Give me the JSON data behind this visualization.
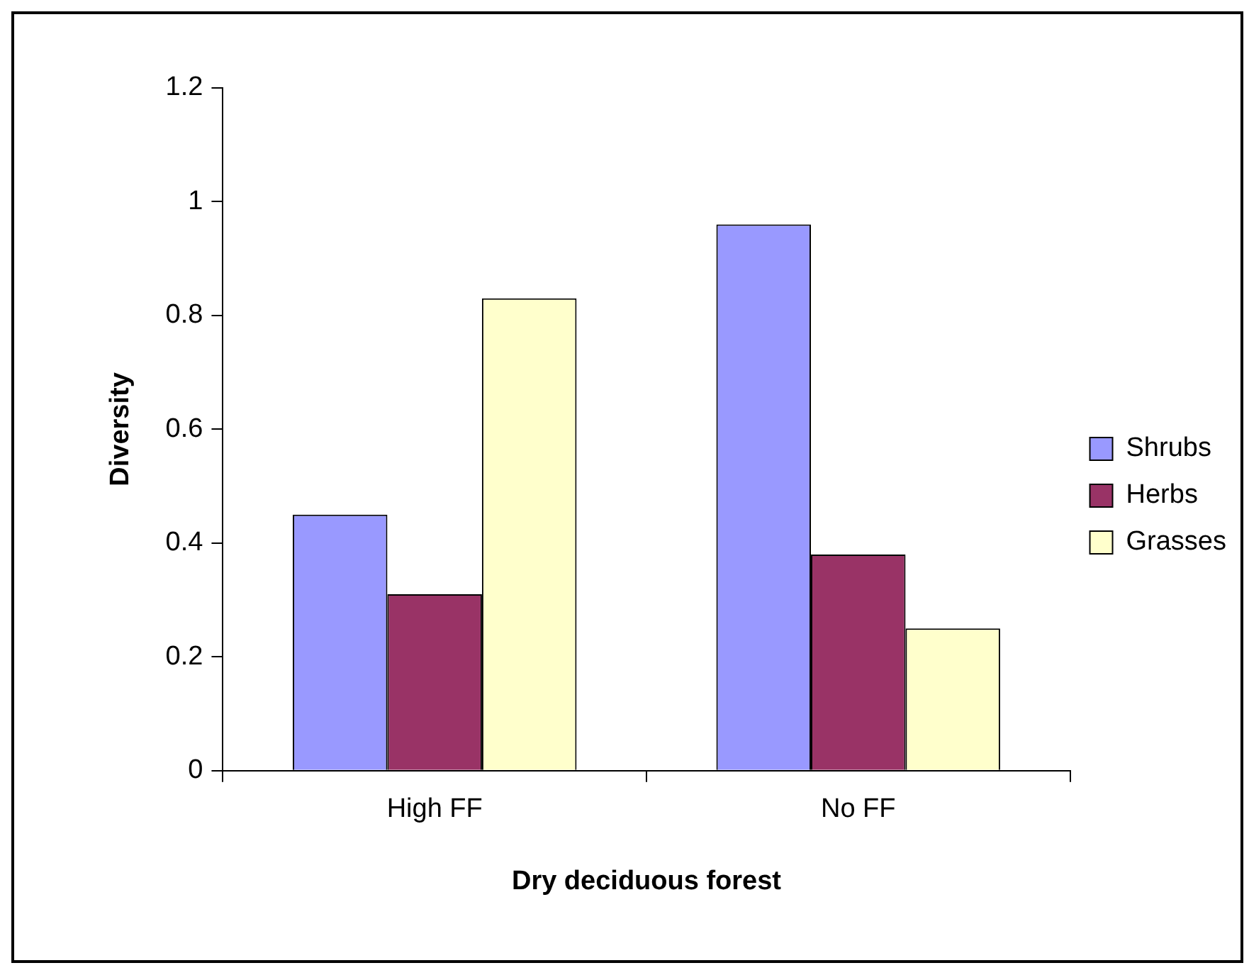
{
  "chart_data": {
    "type": "bar",
    "xlabel": "Dry deciduous forest",
    "ylabel": "Diversity",
    "categories": [
      "High FF",
      "No FF"
    ],
    "series": [
      {
        "name": "Shrubs",
        "color": "#9999ff",
        "values": [
          0.45,
          0.96
        ]
      },
      {
        "name": "Herbs",
        "color": "#993366",
        "values": [
          0.31,
          0.38
        ]
      },
      {
        "name": "Grasses",
        "color": "#ffffcc",
        "values": [
          0.83,
          0.25
        ]
      }
    ],
    "ylim": [
      0,
      1.2
    ],
    "yticks": [
      0,
      0.2,
      0.4,
      0.6,
      0.8,
      1,
      1.2
    ],
    "grid": false,
    "legend": "right"
  }
}
